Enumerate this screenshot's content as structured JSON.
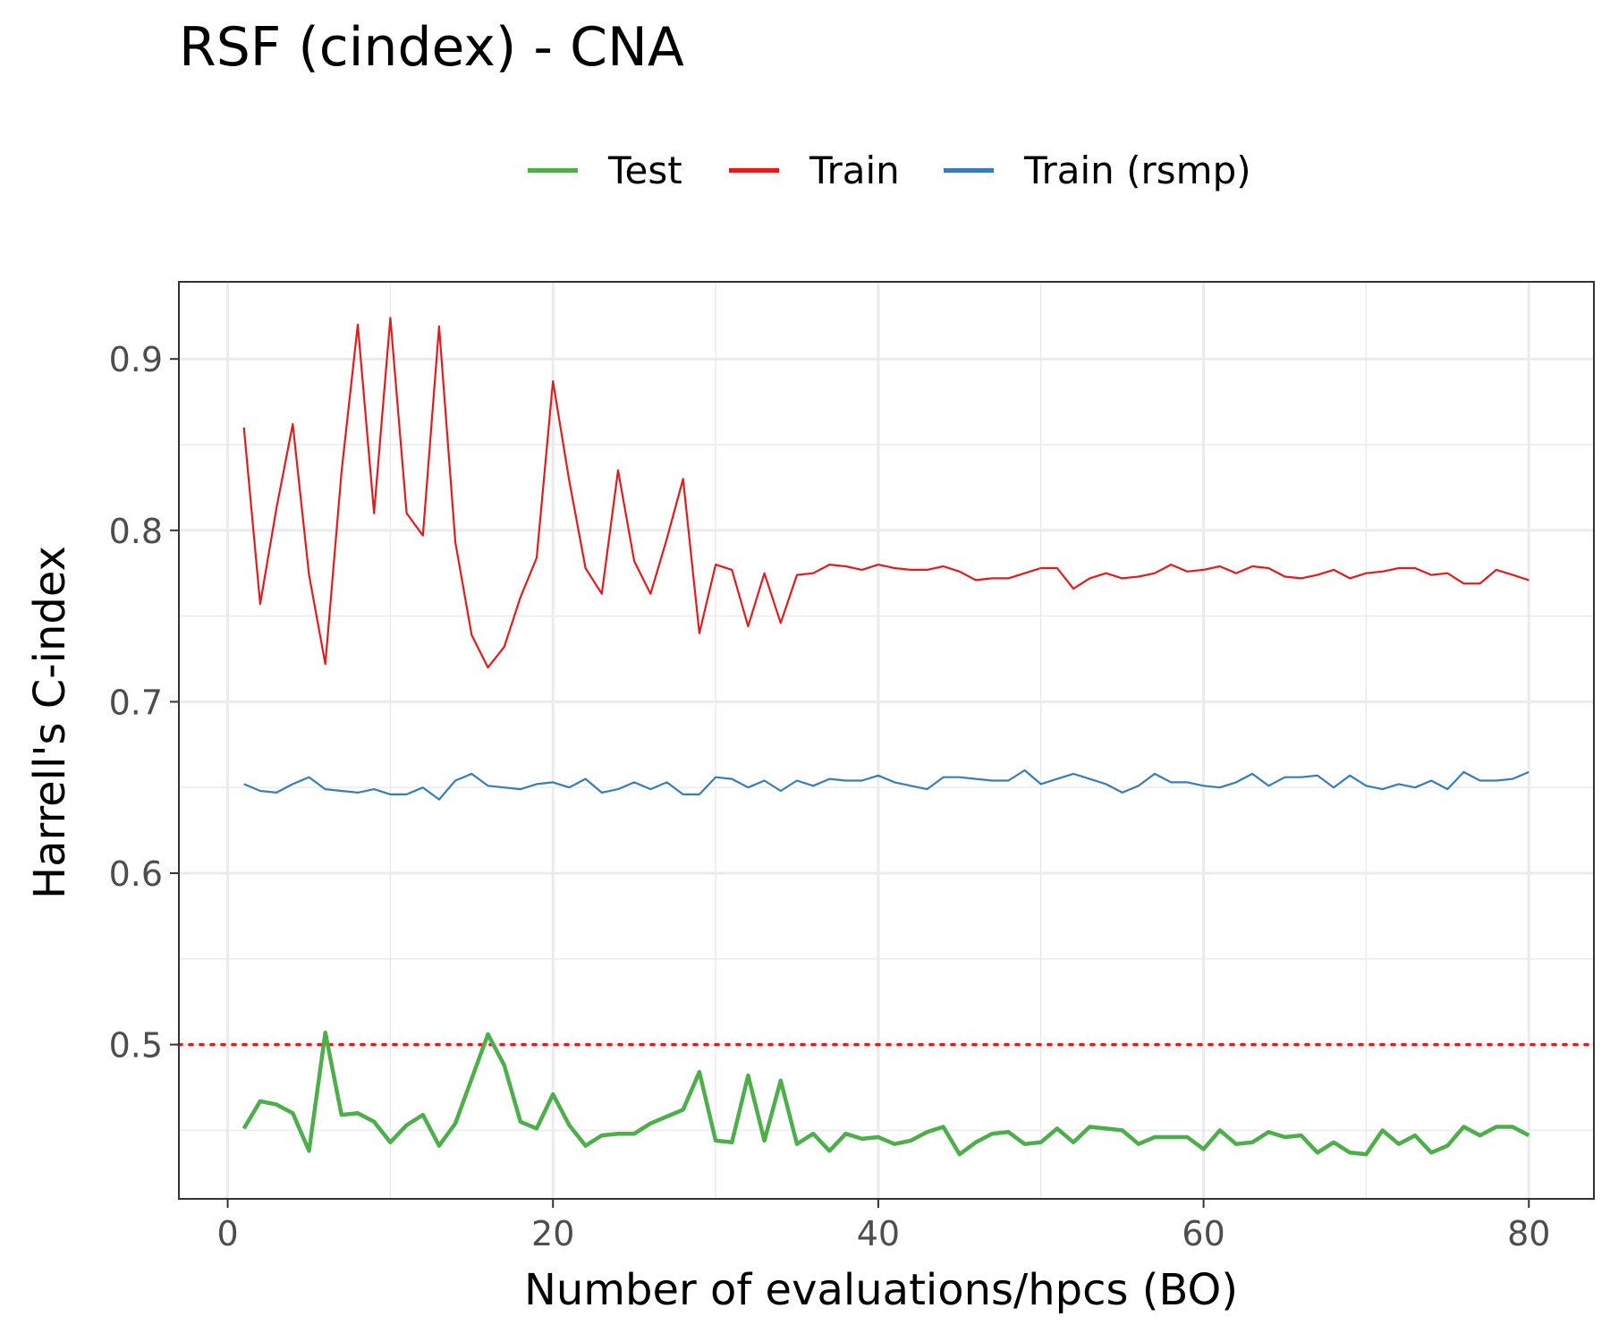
{
  "chart_data": {
    "type": "line",
    "title": "RSF (cindex) - CNA",
    "xlabel": "Number of evaluations/hpcs (BO)",
    "ylabel": "Harrell's C-index",
    "xlim": [
      -3,
      84
    ],
    "ylim": [
      0.41,
      0.945
    ],
    "x_ticks": [
      0,
      20,
      40,
      60,
      80
    ],
    "x_tick_labels": [
      "0",
      "20",
      "40",
      "60",
      "80"
    ],
    "y_ticks": [
      0.5,
      0.6,
      0.7,
      0.8,
      0.9
    ],
    "y_tick_labels": [
      "0.5",
      "0.6",
      "0.7",
      "0.8",
      "0.9"
    ],
    "grid": true,
    "legend_position": "top",
    "reference_line": {
      "y": 0.5,
      "color": "#e41a1c",
      "style": "dotted"
    },
    "x": [
      1,
      2,
      3,
      4,
      5,
      6,
      7,
      8,
      9,
      10,
      11,
      12,
      13,
      14,
      15,
      16,
      17,
      18,
      19,
      20,
      21,
      22,
      23,
      24,
      25,
      26,
      27,
      28,
      29,
      30,
      31,
      32,
      33,
      34,
      35,
      36,
      37,
      38,
      39,
      40,
      41,
      42,
      43,
      44,
      45,
      46,
      47,
      48,
      49,
      50,
      51,
      52,
      53,
      54,
      55,
      56,
      57,
      58,
      59,
      60,
      61,
      62,
      63,
      64,
      65,
      66,
      67,
      68,
      69,
      70,
      71,
      72,
      73,
      74,
      75,
      76,
      77,
      78,
      79,
      80
    ],
    "series": [
      {
        "name": "Test",
        "color": "#4daf4a",
        "line_width": 4.5,
        "values": [
          0.451,
          0.467,
          0.465,
          0.46,
          0.438,
          0.507,
          0.459,
          0.46,
          0.455,
          0.443,
          0.453,
          0.459,
          0.441,
          0.454,
          0.48,
          0.506,
          0.488,
          0.455,
          0.451,
          0.471,
          0.453,
          0.441,
          0.447,
          0.448,
          0.448,
          0.454,
          0.458,
          0.462,
          0.484,
          0.444,
          0.443,
          0.482,
          0.444,
          0.479,
          0.442,
          0.448,
          0.438,
          0.448,
          0.445,
          0.446,
          0.442,
          0.444,
          0.449,
          0.452,
          0.436,
          0.443,
          0.448,
          0.449,
          0.442,
          0.443,
          0.451,
          0.443,
          0.452,
          0.451,
          0.45,
          0.442,
          0.446,
          0.446,
          0.446,
          0.439,
          0.45,
          0.442,
          0.443,
          0.449,
          0.446,
          0.447,
          0.437,
          0.443,
          0.437,
          0.436,
          0.45,
          0.442,
          0.447,
          0.437,
          0.441,
          0.452,
          0.447,
          0.452,
          0.452,
          0.447
        ]
      },
      {
        "name": "Train",
        "color": "#e41a1c",
        "line_width": 2.2,
        "values": [
          0.86,
          0.757,
          0.813,
          0.862,
          0.774,
          0.722,
          0.834,
          0.92,
          0.81,
          0.924,
          0.81,
          0.797,
          0.919,
          0.793,
          0.739,
          0.72,
          0.732,
          0.761,
          0.784,
          0.887,
          0.829,
          0.778,
          0.763,
          0.835,
          0.782,
          0.763,
          0.795,
          0.83,
          0.74,
          0.78,
          0.777,
          0.744,
          0.775,
          0.746,
          0.774,
          0.775,
          0.78,
          0.779,
          0.777,
          0.78,
          0.778,
          0.777,
          0.777,
          0.779,
          0.776,
          0.771,
          0.772,
          0.772,
          0.775,
          0.778,
          0.778,
          0.766,
          0.772,
          0.775,
          0.772,
          0.773,
          0.775,
          0.78,
          0.776,
          0.777,
          0.779,
          0.775,
          0.779,
          0.778,
          0.773,
          0.772,
          0.774,
          0.777,
          0.772,
          0.775,
          0.776,
          0.778,
          0.778,
          0.774,
          0.775,
          0.769,
          0.769,
          0.777,
          0.774,
          0.771
        ]
      },
      {
        "name": "Train (rsmp)",
        "color": "#377eb8",
        "line_width": 2.2,
        "values": [
          0.652,
          0.648,
          0.647,
          0.652,
          0.656,
          0.649,
          0.648,
          0.647,
          0.649,
          0.646,
          0.646,
          0.65,
          0.643,
          0.654,
          0.658,
          0.651,
          0.65,
          0.649,
          0.652,
          0.653,
          0.65,
          0.655,
          0.647,
          0.649,
          0.653,
          0.649,
          0.653,
          0.646,
          0.646,
          0.656,
          0.655,
          0.65,
          0.654,
          0.648,
          0.654,
          0.651,
          0.655,
          0.654,
          0.654,
          0.657,
          0.653,
          0.651,
          0.649,
          0.656,
          0.656,
          0.655,
          0.654,
          0.654,
          0.66,
          0.652,
          0.655,
          0.658,
          0.655,
          0.652,
          0.647,
          0.651,
          0.658,
          0.653,
          0.653,
          0.651,
          0.65,
          0.653,
          0.658,
          0.651,
          0.656,
          0.656,
          0.657,
          0.65,
          0.657,
          0.651,
          0.649,
          0.652,
          0.65,
          0.654,
          0.649,
          0.659,
          0.654,
          0.654,
          0.655,
          0.659
        ]
      }
    ]
  }
}
